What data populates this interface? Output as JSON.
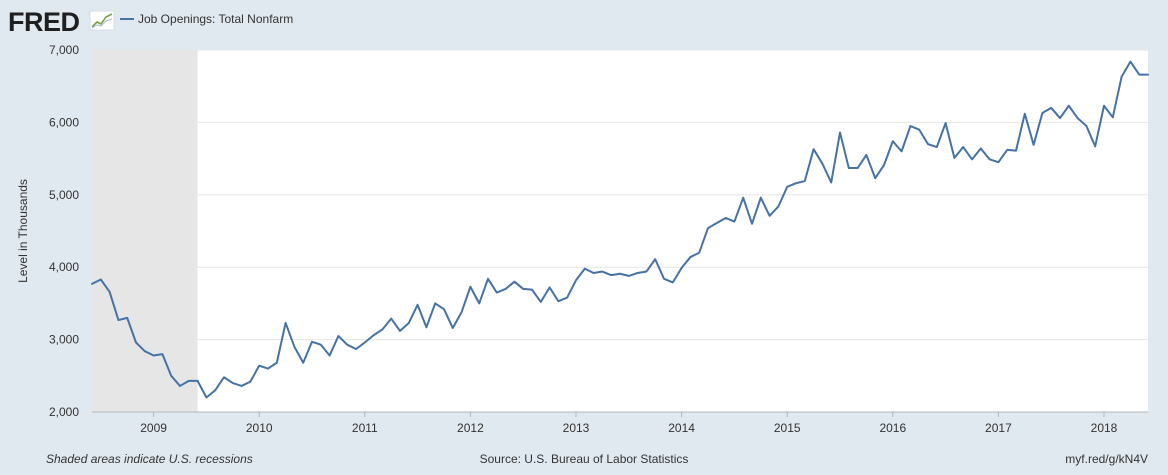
{
  "brand": {
    "name": "FRED",
    "colors": {
      "background": "#e1e9f0",
      "line": "#4572a7",
      "logo": "#1f1f1f",
      "recession": "#e6e6e6"
    }
  },
  "legend": {
    "label": "Job Openings: Total Nonfarm"
  },
  "footer": {
    "left": "Shaded areas indicate U.S. recessions",
    "center": "Source: U.S. Bureau of Labor Statistics",
    "right": "myf.red/g/kN4V"
  },
  "chart_data": {
    "type": "line",
    "title": "",
    "xlabel": "",
    "ylabel": "Level in Thousands",
    "ylim": [
      2000,
      7000
    ],
    "yticks": [
      2000,
      3000,
      4000,
      5000,
      6000,
      7000
    ],
    "ytick_labels": [
      "2,000",
      "3,000",
      "4,000",
      "5,000",
      "6,000",
      "7,000"
    ],
    "xlim": [
      "2008-06",
      "2018-06"
    ],
    "xtick_labels": [
      "2009",
      "2010",
      "2011",
      "2012",
      "2013",
      "2014",
      "2015",
      "2016",
      "2017",
      "2018"
    ],
    "recessions": [
      {
        "start": "2008-06",
        "end": "2009-06"
      }
    ],
    "grid": true,
    "series": [
      {
        "name": "Job Openings: Total Nonfarm",
        "color": "#4572a7",
        "points": [
          [
            "2008-06",
            3770
          ],
          [
            "2008-07",
            3830
          ],
          [
            "2008-08",
            3660
          ],
          [
            "2008-09",
            3270
          ],
          [
            "2008-10",
            3300
          ],
          [
            "2008-11",
            2960
          ],
          [
            "2008-12",
            2840
          ],
          [
            "2009-01",
            2780
          ],
          [
            "2009-02",
            2800
          ],
          [
            "2009-03",
            2500
          ],
          [
            "2009-04",
            2360
          ],
          [
            "2009-05",
            2430
          ],
          [
            "2009-06",
            2430
          ],
          [
            "2009-07",
            2200
          ],
          [
            "2009-08",
            2300
          ],
          [
            "2009-09",
            2480
          ],
          [
            "2009-10",
            2400
          ],
          [
            "2009-11",
            2360
          ],
          [
            "2009-12",
            2420
          ],
          [
            "2010-01",
            2640
          ],
          [
            "2010-02",
            2600
          ],
          [
            "2010-03",
            2680
          ],
          [
            "2010-04",
            3230
          ],
          [
            "2010-05",
            2900
          ],
          [
            "2010-06",
            2680
          ],
          [
            "2010-07",
            2970
          ],
          [
            "2010-08",
            2930
          ],
          [
            "2010-09",
            2780
          ],
          [
            "2010-10",
            3050
          ],
          [
            "2010-11",
            2930
          ],
          [
            "2010-12",
            2870
          ],
          [
            "2011-01",
            2960
          ],
          [
            "2011-02",
            3060
          ],
          [
            "2011-03",
            3140
          ],
          [
            "2011-04",
            3290
          ],
          [
            "2011-05",
            3120
          ],
          [
            "2011-06",
            3230
          ],
          [
            "2011-07",
            3480
          ],
          [
            "2011-08",
            3170
          ],
          [
            "2011-09",
            3500
          ],
          [
            "2011-10",
            3420
          ],
          [
            "2011-11",
            3160
          ],
          [
            "2011-12",
            3380
          ],
          [
            "2012-01",
            3730
          ],
          [
            "2012-02",
            3500
          ],
          [
            "2012-03",
            3840
          ],
          [
            "2012-04",
            3650
          ],
          [
            "2012-05",
            3700
          ],
          [
            "2012-06",
            3800
          ],
          [
            "2012-07",
            3700
          ],
          [
            "2012-08",
            3690
          ],
          [
            "2012-09",
            3520
          ],
          [
            "2012-10",
            3720
          ],
          [
            "2012-11",
            3530
          ],
          [
            "2012-12",
            3580
          ],
          [
            "2013-01",
            3820
          ],
          [
            "2013-02",
            3980
          ],
          [
            "2013-03",
            3920
          ],
          [
            "2013-04",
            3940
          ],
          [
            "2013-05",
            3890
          ],
          [
            "2013-06",
            3910
          ],
          [
            "2013-07",
            3880
          ],
          [
            "2013-08",
            3920
          ],
          [
            "2013-09",
            3940
          ],
          [
            "2013-10",
            4110
          ],
          [
            "2013-11",
            3840
          ],
          [
            "2013-12",
            3790
          ],
          [
            "2014-01",
            3990
          ],
          [
            "2014-02",
            4140
          ],
          [
            "2014-03",
            4200
          ],
          [
            "2014-04",
            4540
          ],
          [
            "2014-05",
            4610
          ],
          [
            "2014-06",
            4680
          ],
          [
            "2014-07",
            4630
          ],
          [
            "2014-08",
            4960
          ],
          [
            "2014-09",
            4600
          ],
          [
            "2014-10",
            4960
          ],
          [
            "2014-11",
            4710
          ],
          [
            "2014-12",
            4840
          ],
          [
            "2015-01",
            5110
          ],
          [
            "2015-02",
            5160
          ],
          [
            "2015-03",
            5190
          ],
          [
            "2015-04",
            5630
          ],
          [
            "2015-05",
            5430
          ],
          [
            "2015-06",
            5170
          ],
          [
            "2015-07",
            5860
          ],
          [
            "2015-08",
            5370
          ],
          [
            "2015-09",
            5370
          ],
          [
            "2015-10",
            5550
          ],
          [
            "2015-11",
            5230
          ],
          [
            "2015-12",
            5410
          ],
          [
            "2016-01",
            5740
          ],
          [
            "2016-02",
            5600
          ],
          [
            "2016-03",
            5950
          ],
          [
            "2016-04",
            5900
          ],
          [
            "2016-05",
            5700
          ],
          [
            "2016-06",
            5660
          ],
          [
            "2016-07",
            5990
          ],
          [
            "2016-08",
            5510
          ],
          [
            "2016-09",
            5660
          ],
          [
            "2016-10",
            5490
          ],
          [
            "2016-11",
            5640
          ],
          [
            "2016-12",
            5490
          ],
          [
            "2017-01",
            5450
          ],
          [
            "2017-02",
            5620
          ],
          [
            "2017-03",
            5610
          ],
          [
            "2017-04",
            6120
          ],
          [
            "2017-05",
            5690
          ],
          [
            "2017-06",
            6130
          ],
          [
            "2017-07",
            6200
          ],
          [
            "2017-08",
            6060
          ],
          [
            "2017-09",
            6230
          ],
          [
            "2017-10",
            6060
          ],
          [
            "2017-11",
            5950
          ],
          [
            "2017-12",
            5670
          ],
          [
            "2018-01",
            6230
          ],
          [
            "2018-02",
            6070
          ],
          [
            "2018-03",
            6630
          ],
          [
            "2018-04",
            6840
          ],
          [
            "2018-05",
            6660
          ],
          [
            "2018-06",
            6660
          ]
        ]
      }
    ]
  }
}
